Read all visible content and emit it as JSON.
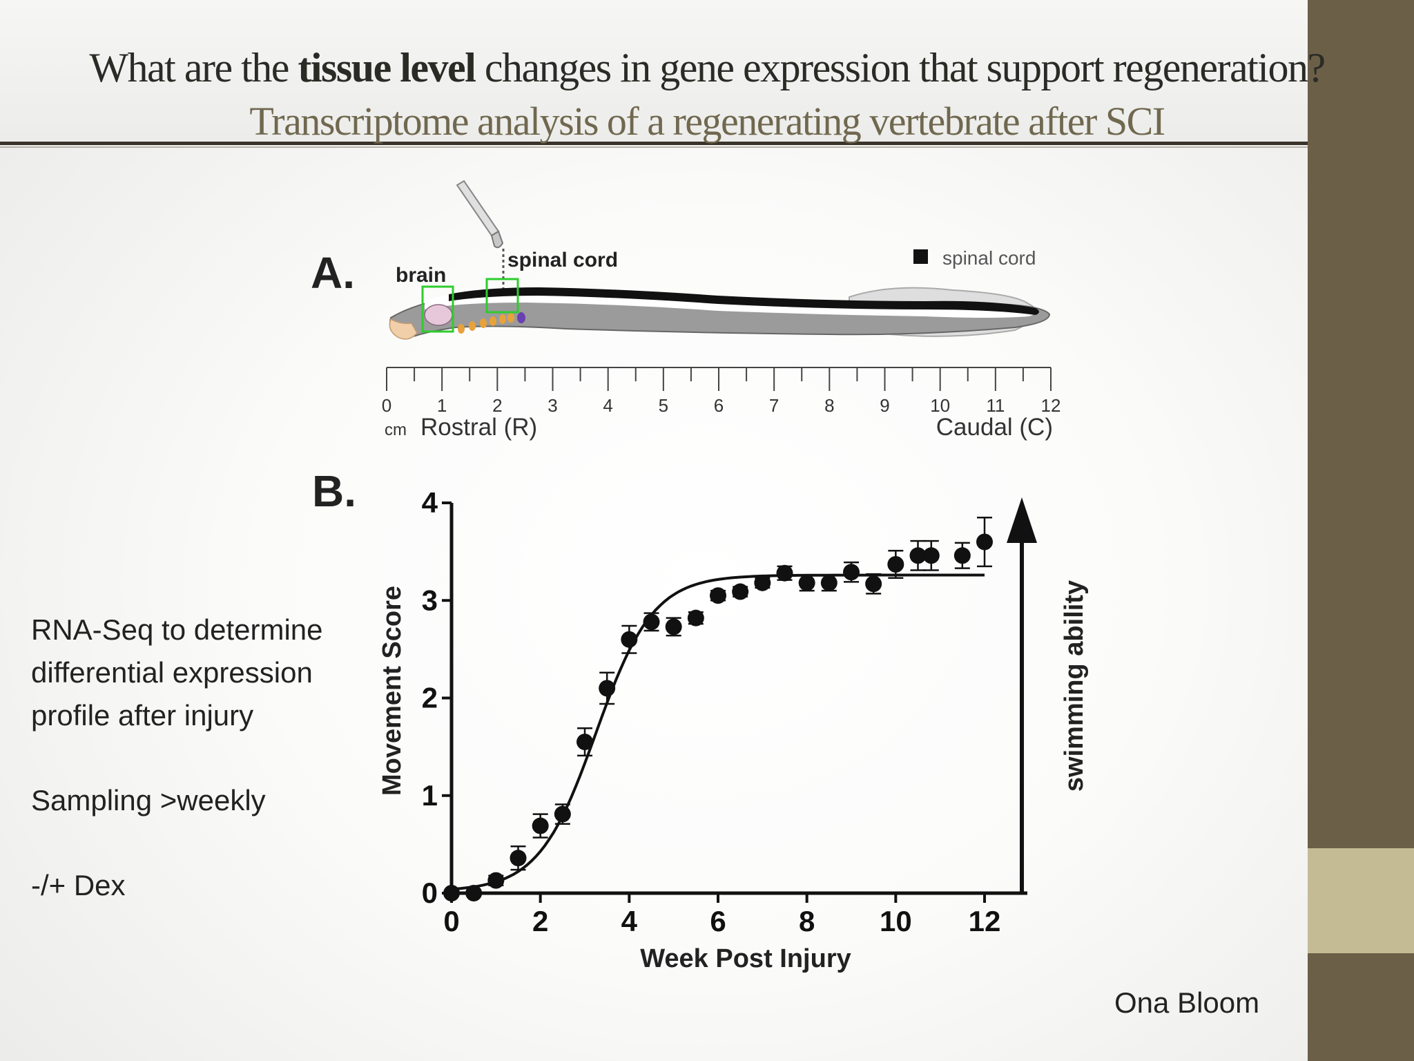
{
  "slide": {
    "title_pre": "What are the ",
    "title_bold": "tissue level",
    "title_post": " changes in gene expression that support regeneration?",
    "subtitle": "Transcriptome analysis of a regenerating vertebrate after SCI",
    "bullets": [
      "RNA-Seq to determine",
      "differential expression",
      "profile after injury",
      "Sampling >weekly",
      "-/+ Dex"
    ],
    "author": "Ona Bloom"
  },
  "panel_a": {
    "label": "A.",
    "brain_label": "brain",
    "cord_label": "spinal cord",
    "legend_label": "spinal cord",
    "ruler_unit": "cm",
    "ruler_ticks": [
      "0",
      "1",
      "2",
      "3",
      "4",
      "5",
      "6",
      "7",
      "8",
      "9",
      "10",
      "11",
      "12"
    ],
    "rostral_label": "Rostral (R)",
    "caudal_label": "Caudal (C)",
    "colors": {
      "body": "#9a9a9a",
      "cord": "#111111",
      "box": "#2ecc2e"
    }
  },
  "chart_data": {
    "type": "scatter",
    "panel_label": "B.",
    "xlabel": "Week Post Injury",
    "ylabel": "Movement Score",
    "right_label": "swimming ability",
    "xlim": [
      0,
      12
    ],
    "ylim": [
      0,
      4
    ],
    "x_ticks": [
      0,
      2,
      4,
      6,
      8,
      10,
      12
    ],
    "y_ticks": [
      0,
      1,
      2,
      3,
      4
    ],
    "grid": false,
    "fit": "sigmoid",
    "points": [
      {
        "x": 0,
        "y": 0,
        "err": 0
      },
      {
        "x": 0.5,
        "y": 0,
        "err": 0
      },
      {
        "x": 1,
        "y": 0.13,
        "err": 0.05
      },
      {
        "x": 1.5,
        "y": 0.36,
        "err": 0.12
      },
      {
        "x": 2,
        "y": 0.69,
        "err": 0.12
      },
      {
        "x": 2.5,
        "y": 0.81,
        "err": 0.1
      },
      {
        "x": 3,
        "y": 1.55,
        "err": 0.14
      },
      {
        "x": 3.5,
        "y": 2.1,
        "err": 0.16
      },
      {
        "x": 4,
        "y": 2.6,
        "err": 0.14
      },
      {
        "x": 4.5,
        "y": 2.78,
        "err": 0.09
      },
      {
        "x": 5,
        "y": 2.73,
        "err": 0.09
      },
      {
        "x": 5.5,
        "y": 2.82,
        "err": 0.06
      },
      {
        "x": 6,
        "y": 3.05,
        "err": 0.05
      },
      {
        "x": 6.5,
        "y": 3.09,
        "err": 0.05
      },
      {
        "x": 7,
        "y": 3.18,
        "err": 0.05
      },
      {
        "x": 7.5,
        "y": 3.28,
        "err": 0.07
      },
      {
        "x": 8,
        "y": 3.18,
        "err": 0.08
      },
      {
        "x": 8.5,
        "y": 3.18,
        "err": 0.08
      },
      {
        "x": 9,
        "y": 3.29,
        "err": 0.1
      },
      {
        "x": 9.5,
        "y": 3.17,
        "err": 0.1
      },
      {
        "x": 10,
        "y": 3.37,
        "err": 0.14
      },
      {
        "x": 10.5,
        "y": 3.46,
        "err": 0.15
      },
      {
        "x": 10.8,
        "y": 3.46,
        "err": 0.15
      },
      {
        "x": 11.5,
        "y": 3.46,
        "err": 0.13
      },
      {
        "x": 12,
        "y": 3.6,
        "err": 0.25
      }
    ]
  }
}
